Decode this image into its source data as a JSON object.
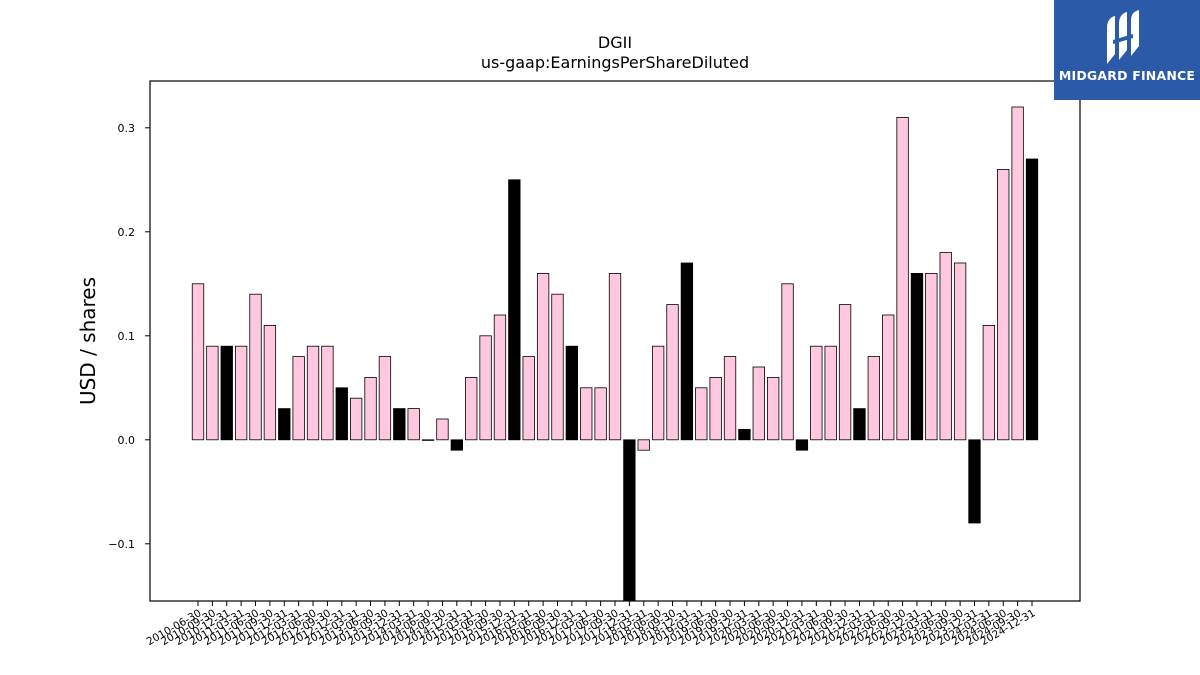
{
  "logo": {
    "text": "MIDGARD FINANCE"
  },
  "colors": {
    "positive": "#ffc8e0",
    "negative": "#000000",
    "edge": "#000000"
  },
  "chart_data": {
    "type": "bar",
    "title": "DGII",
    "subtitle": "us-gaap:EarningsPerShareDiluted",
    "xlabel": "",
    "ylabel": "USD / shares",
    "ylim": [
      -0.155,
      0.345
    ],
    "yticks": [
      -0.1,
      0.0,
      0.1,
      0.2,
      0.3
    ],
    "ytick_labels": [
      "−0.1",
      "0.0",
      "0.1",
      "0.2",
      "0.3"
    ],
    "grid": false,
    "categories": [
      "2010-06-30",
      "2010-09-30",
      "2010-12-31",
      "2011-03-31",
      "2011-06-30",
      "2011-09-30",
      "2011-12-31",
      "2012-03-31",
      "2012-06-30",
      "2012-09-30",
      "2012-12-31",
      "2013-03-31",
      "2013-06-30",
      "2013-09-30",
      "2013-12-31",
      "2014-03-31",
      "2014-06-30",
      "2014-09-30",
      "2014-12-31",
      "2015-03-31",
      "2015-06-30",
      "2015-09-30",
      "2015-12-31",
      "2016-03-31",
      "2016-06-30",
      "2016-09-30",
      "2016-12-31",
      "2017-03-31",
      "2017-06-30",
      "2017-09-30",
      "2017-12-31",
      "2018-03-31",
      "2018-06-30",
      "2018-09-30",
      "2018-12-31",
      "2019-03-31",
      "2019-06-30",
      "2019-09-30",
      "2019-12-31",
      "2020-03-31",
      "2020-06-30",
      "2020-09-30",
      "2020-12-31",
      "2021-03-31",
      "2021-06-30",
      "2021-09-30",
      "2021-12-31",
      "2022-03-31",
      "2022-06-30",
      "2022-09-30",
      "2022-12-31",
      "2023-03-31",
      "2023-06-30",
      "2023-09-30",
      "2023-12-31",
      "2024-03-31",
      "2024-06-30",
      "2024-09-30",
      "2024-12-31"
    ],
    "values": [
      0.15,
      0.09,
      0.09,
      0.09,
      0.14,
      0.11,
      0.03,
      0.08,
      0.09,
      0.09,
      0.05,
      0.04,
      0.06,
      0.08,
      0.03,
      0.03,
      0.0,
      0.02,
      -0.01,
      0.06,
      0.1,
      0.12,
      0.25,
      0.08,
      0.16,
      0.14,
      0.09,
      0.05,
      0.05,
      0.16,
      -0.16,
      -0.01,
      0.09,
      0.13,
      0.17,
      0.05,
      0.06,
      0.08,
      0.01,
      0.07,
      0.06,
      0.15,
      -0.01,
      0.09,
      0.09,
      0.13,
      0.03,
      0.08,
      0.12,
      0.31,
      0.16,
      0.16,
      0.18,
      0.17,
      -0.08,
      0.11,
      0.26,
      0.32,
      0.27
    ],
    "highlight": [
      false,
      false,
      true,
      false,
      false,
      false,
      true,
      false,
      false,
      false,
      true,
      false,
      false,
      false,
      true,
      false,
      false,
      false,
      true,
      false,
      false,
      false,
      true,
      false,
      false,
      false,
      true,
      false,
      false,
      false,
      true,
      false,
      false,
      false,
      true,
      false,
      false,
      false,
      true,
      false,
      false,
      false,
      true,
      false,
      false,
      false,
      true,
      false,
      false,
      false,
      true,
      false,
      false,
      false,
      true,
      false,
      false,
      false,
      true
    ]
  }
}
